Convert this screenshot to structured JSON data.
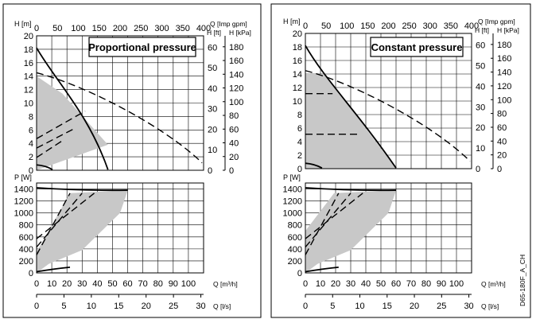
{
  "figure_code": "D65-180F_A_CH",
  "colors": {
    "area_fill": "#c8c8c8",
    "line": "#000000",
    "grid": "#000000",
    "frame": "#000000"
  },
  "chart_data": [
    {
      "type": "line",
      "title": "Proportional pressure",
      "mode": "proportional",
      "axes": {
        "h_m": {
          "label": "H [m]",
          "ticks": [
            "0",
            "2",
            "4",
            "6",
            "8",
            "10",
            "12",
            "14",
            "16",
            "18",
            "20"
          ],
          "range": [
            0,
            20
          ]
        },
        "h_ft": {
          "label": "H [ft]",
          "ticks": [
            "0",
            "10",
            "20",
            "30",
            "40",
            "50",
            "60"
          ],
          "range": [
            0,
            65.6
          ]
        },
        "h_kpa": {
          "label": "H [kPa]",
          "ticks": [
            "0",
            "20",
            "40",
            "60",
            "80",
            "100",
            "120",
            "140",
            "160",
            "180"
          ],
          "range": [
            0,
            196
          ]
        },
        "q_impgpm": {
          "label": "Q [Imp gpm]",
          "ticks": [
            "0",
            "50",
            "100",
            "150",
            "200",
            "250",
            "300",
            "350",
            "400"
          ],
          "range": [
            0,
            400
          ]
        },
        "q_m3h": {
          "label": "Q [m³/h]",
          "ticks": [
            "0",
            "10",
            "20",
            "30",
            "40",
            "50",
            "60",
            "70",
            "80",
            "90",
            "100"
          ],
          "range": [
            0,
            110
          ]
        },
        "q_ls": {
          "label": "Q [l/s]",
          "ticks": [
            "0",
            "5",
            "10",
            "15",
            "20",
            "25",
            "30"
          ],
          "range": [
            0,
            30.5
          ]
        },
        "p_w": {
          "label": "P [W]",
          "ticks": [
            "0",
            "200",
            "400",
            "600",
            "800",
            "1000",
            "1200",
            "1400"
          ],
          "range": [
            0,
            1500
          ]
        }
      },
      "area": {
        "q": [
          0,
          0,
          17,
          47
        ],
        "h": [
          0,
          14,
          11.4,
          3.8
        ]
      },
      "series": [
        {
          "style": "dashed",
          "q": [
            0,
            33,
            85,
            109
          ],
          "h": [
            14.5,
            12.6,
            6.4,
            1.1
          ]
        },
        {
          "style": "solid",
          "q": [
            0,
            12.5,
            34,
            47
          ],
          "h": [
            18.2,
            13.3,
            8.5,
            0.1
          ]
        },
        {
          "style": "solid",
          "q": [
            0,
            6,
            10.5
          ],
          "h": [
            0.8,
            0.7,
            0.1
          ]
        },
        {
          "style": "dashed",
          "q": [
            0,
            32
          ],
          "h": [
            4.7,
            8.8
          ]
        },
        {
          "style": "dashed",
          "q": [
            0,
            24
          ],
          "h": [
            3.3,
            6.1
          ]
        },
        {
          "style": "dashed",
          "q": [
            0,
            17
          ],
          "h": [
            1.9,
            4.4
          ]
        }
      ],
      "power_area": {
        "q": [
          0,
          0,
          22,
          60,
          59,
          55,
          30,
          8
        ],
        "p": [
          0,
          350,
          1330,
          1380,
          1300,
          1000,
          380,
          150
        ]
      },
      "power_series": [
        {
          "style": "solid",
          "q": [
            0,
            30,
            60
          ],
          "p": [
            1420,
            1370,
            1380
          ]
        },
        {
          "style": "solid",
          "q": [
            0,
            12,
            22
          ],
          "p": [
            20,
            70,
            95
          ]
        },
        {
          "style": "dashed",
          "q": [
            0,
            38
          ],
          "p": [
            570,
            1330
          ]
        },
        {
          "style": "dashed",
          "q": [
            0,
            30
          ],
          "p": [
            430,
            1330
          ]
        },
        {
          "style": "dashed",
          "q": [
            0,
            22
          ],
          "p": [
            300,
            1330
          ]
        }
      ]
    },
    {
      "type": "line",
      "title": "Constant pressure",
      "mode": "constant",
      "axes": {
        "h_m": {
          "label": "H [m]",
          "ticks": [
            "0",
            "2",
            "4",
            "6",
            "8",
            "10",
            "12",
            "14",
            "16",
            "18",
            "20"
          ],
          "range": [
            0,
            20
          ]
        },
        "h_ft": {
          "label": "H [ft]",
          "ticks": [
            "0",
            "10",
            "20",
            "30",
            "40",
            "50",
            "60"
          ],
          "range": [
            0,
            65.6
          ]
        },
        "h_kpa": {
          "label": "H [kPa]",
          "ticks": [
            "0",
            "20",
            "40",
            "60",
            "80",
            "100",
            "120",
            "140",
            "160",
            "180"
          ],
          "range": [
            0,
            196
          ]
        },
        "q_impgpm": {
          "label": "Q [Imp gpm]",
          "ticks": [
            "0",
            "50",
            "100",
            "150",
            "200",
            "250",
            "300",
            "350",
            "400"
          ],
          "range": [
            0,
            400
          ]
        },
        "q_m3h": {
          "label": "Q [m³/h]",
          "ticks": [
            "0",
            "10",
            "20",
            "30",
            "40",
            "50",
            "60",
            "70",
            "80",
            "90",
            "100"
          ],
          "range": [
            0,
            110
          ]
        },
        "q_ls": {
          "label": "Q [l/s]",
          "ticks": [
            "0",
            "5",
            "10",
            "15",
            "20",
            "25",
            "30"
          ],
          "range": [
            0,
            30.5
          ]
        },
        "p_w": {
          "label": "P [W]",
          "ticks": [
            "0",
            "200",
            "400",
            "600",
            "800",
            "1000",
            "1200",
            "1400"
          ],
          "range": [
            0,
            1500
          ]
        }
      },
      "area": {
        "q": [
          0,
          0,
          13,
          60
        ],
        "h": [
          0,
          14,
          14,
          0
        ]
      },
      "series": [
        {
          "style": "dashed",
          "q": [
            0,
            33,
            85,
            109
          ],
          "h": [
            14.5,
            12.6,
            6.4,
            1.1
          ]
        },
        {
          "style": "solid",
          "q": [
            0,
            12.5,
            34,
            60
          ],
          "h": [
            18.2,
            13.3,
            8.5,
            0.1
          ]
        },
        {
          "style": "solid",
          "q": [
            0,
            6,
            11
          ],
          "h": [
            0.8,
            0.7,
            0.1
          ]
        },
        {
          "style": "dashed",
          "q": [
            0,
            18
          ],
          "h": [
            11.1,
            11.1
          ]
        },
        {
          "style": "dashed",
          "q": [
            0,
            35
          ],
          "h": [
            5.1,
            5.1
          ]
        }
      ],
      "power_area": {
        "q": [
          0,
          0,
          19,
          60,
          59,
          55,
          30,
          8
        ],
        "p": [
          0,
          700,
          1330,
          1380,
          1300,
          1000,
          380,
          150
        ]
      },
      "power_series": [
        {
          "style": "solid",
          "q": [
            0,
            30,
            60
          ],
          "p": [
            1420,
            1370,
            1380
          ]
        },
        {
          "style": "solid",
          "q": [
            0,
            12,
            22
          ],
          "p": [
            20,
            70,
            95
          ]
        },
        {
          "style": "dashed",
          "q": [
            0,
            38
          ],
          "p": [
            570,
            1330
          ]
        },
        {
          "style": "dashed",
          "q": [
            0,
            30
          ],
          "p": [
            430,
            1330
          ]
        },
        {
          "style": "dashed",
          "q": [
            0,
            22
          ],
          "p": [
            300,
            1330
          ]
        }
      ]
    }
  ]
}
